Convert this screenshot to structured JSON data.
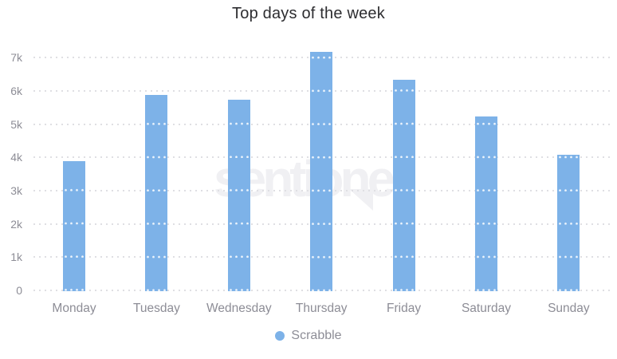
{
  "chart_data": {
    "type": "bar",
    "title": "Top days of the week",
    "categories": [
      "Monday",
      "Tuesday",
      "Wednesday",
      "Thursday",
      "Friday",
      "Saturday",
      "Sunday"
    ],
    "series": [
      {
        "name": "Scrabble",
        "values": [
          3900,
          5900,
          5750,
          7200,
          6350,
          5250,
          4100
        ]
      }
    ],
    "xlabel": "",
    "ylabel": "",
    "ylim": [
      0,
      7000
    ],
    "ytick_labels": [
      "0",
      "1k",
      "2k",
      "3k",
      "4k",
      "5k",
      "6k",
      "7k"
    ],
    "grid": "horizontal-dotted",
    "legend_position": "bottom-center",
    "bar_color": "#7db2e8"
  },
  "legend": {
    "marker_color": "#7db2e8",
    "label": "Scrabble"
  },
  "watermark": {
    "text": "sentione"
  },
  "colors": {
    "title": "#2d2d30",
    "axis_labels": "#8d8d96",
    "gridline": "#dfdfe3",
    "watermark": "#f0f0f3",
    "background": "#ffffff"
  }
}
